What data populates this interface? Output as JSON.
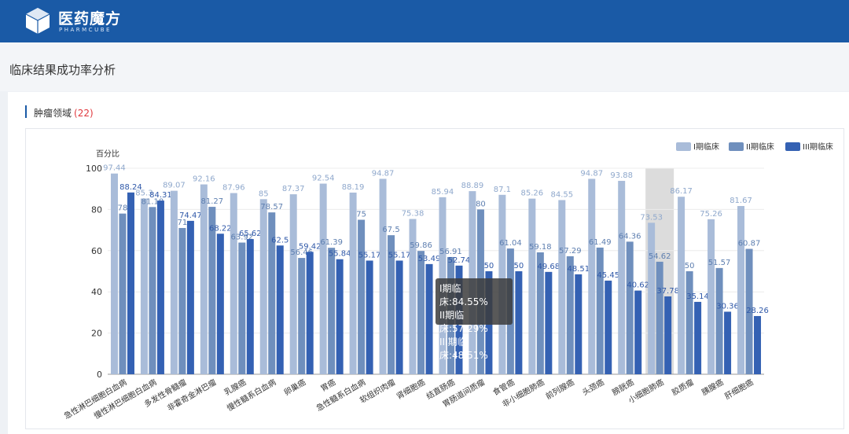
{
  "header": {
    "brand": "医药魔方",
    "brand_sub": "PHARMCUBE"
  },
  "page": {
    "title": "临床结果成功率分析"
  },
  "section": {
    "title": "肿瘤领域",
    "count": "(22)"
  },
  "tooltip": {
    "lines": [
      "I期临床:84.55%",
      "II期临床:57.29%",
      "III期临床:48.51%"
    ]
  },
  "colors": {
    "brand": "#1a5aa6",
    "phase1": "#a9bcd9",
    "phase2": "#6f8fbd",
    "phase3": "#3461b3",
    "count": "#e0393e"
  },
  "chart_data": {
    "type": "bar",
    "ylabel": "百分比",
    "ylim": [
      0,
      100
    ],
    "yticks": [
      0,
      20,
      40,
      60,
      80,
      100
    ],
    "legend_position": "top-right",
    "highlight_category": "小细胞肺癌",
    "categories": [
      "急性淋巴细胞白血病",
      "慢性淋巴细胞白血病",
      "多发性骨髓瘤",
      "非霍奇金淋巴瘤",
      "乳腺癌",
      "慢性髓系白血病",
      "卵巢癌",
      "胃癌",
      "急性髓系白血病",
      "软组织肉瘤",
      "肾细胞癌",
      "结直肠癌",
      "胃肠道间质瘤",
      "食管癌",
      "非小细胞肺癌",
      "前列腺癌",
      "头颈癌",
      "膀胱癌",
      "小细胞肺癌",
      "胶质瘤",
      "胰腺癌",
      "肝细胞癌"
    ],
    "series": [
      {
        "name": "I期临床",
        "values": [
          97.44,
          85.3,
          89.07,
          92.16,
          87.96,
          85,
          87.37,
          92.54,
          88.19,
          94.87,
          75.38,
          85.94,
          88.89,
          87.1,
          85.26,
          84.55,
          94.87,
          93.88,
          73.53,
          86.17,
          75.26,
          81.67
        ]
      },
      {
        "name": "II期临床",
        "values": [
          78.0,
          81.18,
          71,
          81.27,
          63.92,
          78.57,
          56.46,
          61.39,
          75,
          67.5,
          59.86,
          56.91,
          80,
          61.04,
          59.18,
          57.29,
          61.49,
          64.36,
          54.62,
          50,
          51.57,
          60.87
        ]
      },
      {
        "name": "III期临床",
        "values": [
          88.24,
          84.31,
          74.47,
          68.22,
          65.62,
          62.5,
          59.42,
          55.84,
          55.17,
          55.17,
          53.49,
          52.74,
          50,
          50,
          49.68,
          48.51,
          45.45,
          40.62,
          37.78,
          35.14,
          30.36,
          28.26
        ]
      }
    ]
  }
}
